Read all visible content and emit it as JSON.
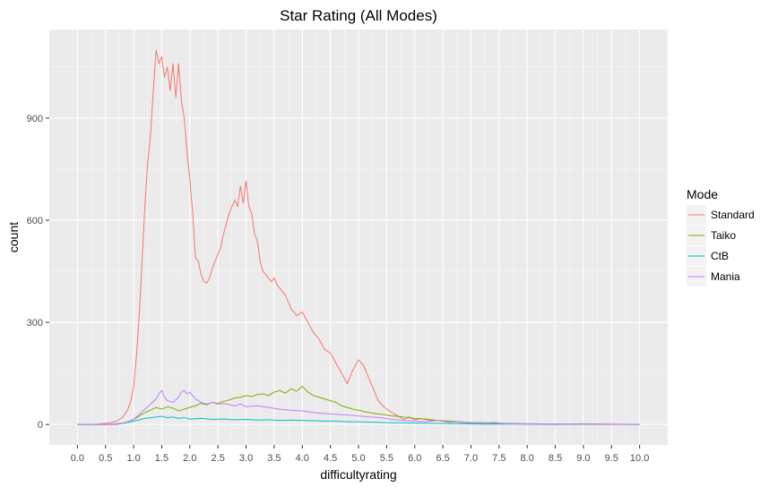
{
  "chart_data": {
    "type": "line",
    "title": "Star Rating (All Modes)",
    "xlabel": "difficultyrating",
    "ylabel": "count",
    "xlim": [
      -0.5,
      10.5
    ],
    "ylim": [
      -60,
      1160
    ],
    "x_ticks": [
      "0.0",
      "0.5",
      "1.0",
      "1.5",
      "2.0",
      "2.5",
      "3.0",
      "3.5",
      "4.0",
      "4.5",
      "5.0",
      "5.5",
      "6.0",
      "6.5",
      "7.0",
      "7.5",
      "8.0",
      "8.5",
      "9.0",
      "9.5",
      "10.0"
    ],
    "y_ticks": [
      "0",
      "300",
      "600",
      "900"
    ],
    "grid": true,
    "legend": {
      "title": "Mode",
      "position": "right"
    },
    "series": [
      {
        "name": "Standard",
        "color": "#F8766D",
        "x": [
          0,
          0.3,
          0.5,
          0.6,
          0.7,
          0.8,
          0.9,
          0.95,
          1.0,
          1.05,
          1.1,
          1.15,
          1.2,
          1.25,
          1.3,
          1.35,
          1.4,
          1.45,
          1.5,
          1.55,
          1.6,
          1.65,
          1.7,
          1.75,
          1.8,
          1.85,
          1.9,
          1.95,
          2.0,
          2.05,
          2.1,
          2.15,
          2.2,
          2.25,
          2.3,
          2.35,
          2.4,
          2.45,
          2.5,
          2.55,
          2.6,
          2.65,
          2.7,
          2.75,
          2.8,
          2.85,
          2.9,
          2.95,
          3.0,
          3.05,
          3.1,
          3.15,
          3.2,
          3.25,
          3.3,
          3.35,
          3.4,
          3.45,
          3.5,
          3.55,
          3.6,
          3.65,
          3.7,
          3.75,
          3.8,
          3.9,
          4.0,
          4.1,
          4.2,
          4.3,
          4.4,
          4.5,
          4.6,
          4.7,
          4.8,
          4.9,
          5.0,
          5.1,
          5.2,
          5.25,
          5.3,
          5.35,
          5.4,
          5.5,
          5.6,
          5.7,
          5.8,
          5.9,
          6.0,
          6.1,
          6.2,
          6.3,
          6.4,
          6.5,
          6.6,
          6.7,
          6.8,
          6.9,
          7.0,
          7.2,
          7.4,
          7.6,
          7.8,
          8.0,
          8.5,
          9.0,
          9.5,
          10.0
        ],
        "values": [
          0,
          0,
          3,
          6,
          10,
          20,
          45,
          70,
          110,
          200,
          320,
          480,
          640,
          770,
          850,
          980,
          1100,
          1060,
          1080,
          1020,
          1050,
          980,
          1060,
          960,
          1060,
          950,
          900,
          800,
          720,
          620,
          490,
          480,
          440,
          420,
          415,
          430,
          460,
          480,
          500,
          520,
          560,
          590,
          620,
          640,
          660,
          640,
          700,
          650,
          715,
          640,
          620,
          560,
          540,
          480,
          450,
          440,
          430,
          420,
          430,
          410,
          400,
          390,
          380,
          360,
          340,
          320,
          330,
          300,
          270,
          250,
          220,
          210,
          180,
          150,
          120,
          160,
          190,
          170,
          130,
          110,
          90,
          70,
          60,
          45,
          35,
          25,
          15,
          22,
          13,
          18,
          14,
          12,
          12,
          10,
          10,
          8,
          6,
          5,
          4,
          3,
          2,
          2,
          2,
          1,
          0,
          2,
          1,
          0
        ]
      },
      {
        "name": "Taiko",
        "color": "#7CAE00",
        "x": [
          0,
          0.5,
          0.7,
          0.8,
          0.9,
          1.0,
          1.1,
          1.2,
          1.3,
          1.4,
          1.5,
          1.6,
          1.7,
          1.8,
          1.9,
          2.0,
          2.1,
          2.2,
          2.3,
          2.4,
          2.5,
          2.6,
          2.7,
          2.8,
          2.9,
          3.0,
          3.1,
          3.2,
          3.3,
          3.4,
          3.5,
          3.6,
          3.7,
          3.8,
          3.9,
          4.0,
          4.1,
          4.2,
          4.3,
          4.4,
          4.5,
          4.6,
          4.7,
          4.8,
          4.9,
          5.0,
          5.1,
          5.2,
          5.3,
          5.4,
          5.5,
          5.6,
          5.7,
          5.8,
          5.9,
          6.0,
          6.2,
          6.4,
          6.6,
          6.8,
          7.0,
          7.2,
          7.4,
          7.6,
          8.0,
          10.0
        ],
        "values": [
          0,
          0,
          2,
          4,
          8,
          15,
          25,
          35,
          42,
          50,
          45,
          52,
          48,
          40,
          45,
          50,
          55,
          62,
          58,
          65,
          62,
          68,
          72,
          78,
          80,
          85,
          82,
          88,
          90,
          85,
          95,
          100,
          92,
          105,
          98,
          112,
          95,
          85,
          80,
          75,
          70,
          65,
          55,
          50,
          45,
          42,
          38,
          35,
          32,
          30,
          28,
          25,
          24,
          22,
          20,
          18,
          16,
          12,
          10,
          8,
          6,
          5,
          4,
          3,
          2,
          0
        ]
      },
      {
        "name": "CtB",
        "color": "#00BFC4",
        "x": [
          0,
          0.6,
          0.8,
          0.9,
          1.0,
          1.1,
          1.2,
          1.3,
          1.4,
          1.5,
          1.6,
          1.7,
          1.8,
          1.9,
          2.0,
          2.2,
          2.4,
          2.6,
          2.8,
          3.0,
          3.2,
          3.4,
          3.6,
          3.8,
          4.0,
          4.2,
          4.4,
          4.6,
          4.8,
          5.0,
          5.2,
          5.4,
          5.6,
          5.8,
          6.0,
          6.4,
          6.8,
          7.2,
          8.0,
          10.0
        ],
        "values": [
          0,
          0,
          3,
          6,
          10,
          14,
          18,
          20,
          22,
          24,
          20,
          22,
          18,
          20,
          16,
          18,
          15,
          16,
          14,
          15,
          13,
          14,
          12,
          13,
          12,
          11,
          10,
          10,
          8,
          8,
          7,
          6,
          5,
          5,
          4,
          3,
          2,
          1,
          1,
          0
        ]
      },
      {
        "name": "Mania",
        "color": "#C77CFF",
        "x": [
          0,
          0.7,
          0.8,
          0.9,
          1.0,
          1.1,
          1.2,
          1.3,
          1.4,
          1.45,
          1.5,
          1.55,
          1.6,
          1.7,
          1.8,
          1.85,
          1.9,
          1.95,
          2.0,
          2.05,
          2.1,
          2.2,
          2.3,
          2.4,
          2.5,
          2.6,
          2.7,
          2.8,
          2.9,
          3.0,
          3.2,
          3.4,
          3.6,
          3.8,
          4.0,
          4.2,
          4.4,
          4.6,
          4.8,
          5.0,
          5.2,
          5.4,
          5.6,
          5.8,
          6.0,
          6.2,
          6.4,
          6.6,
          6.8,
          7.0,
          7.2,
          7.4,
          7.6,
          7.8,
          8.0,
          9.0,
          10.0
        ],
        "values": [
          0,
          0,
          3,
          8,
          15,
          30,
          45,
          60,
          75,
          90,
          100,
          80,
          70,
          65,
          80,
          95,
          100,
          90,
          95,
          85,
          75,
          65,
          60,
          65,
          60,
          62,
          58,
          55,
          60,
          52,
          55,
          50,
          45,
          42,
          40,
          35,
          32,
          30,
          28,
          25,
          22,
          20,
          15,
          12,
          10,
          8,
          12,
          6,
          8,
          5,
          4,
          6,
          3,
          2,
          2,
          1,
          0
        ]
      }
    ]
  }
}
